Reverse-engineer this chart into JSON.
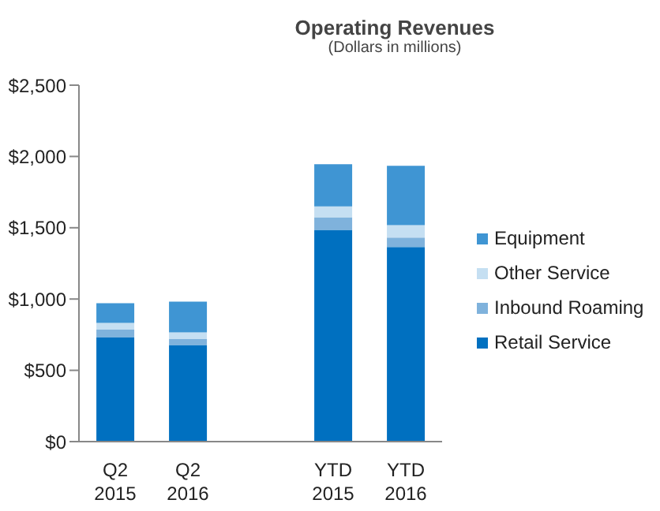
{
  "chart_data": {
    "type": "bar",
    "title": "Operating Revenues",
    "subtitle": "(Dollars in millions)",
    "stacked": true,
    "categories": [
      "Q2 2015",
      "Q2 2016",
      null,
      "YTD 2015",
      "YTD 2016"
    ],
    "series": [
      {
        "name": "Retail Service",
        "color": "#0070c0",
        "values": [
          730,
          675,
          null,
          1485,
          1365
        ]
      },
      {
        "name": "Inbound Roaming",
        "color": "#7fb2dc",
        "values": [
          55,
          44,
          null,
          88,
          66
        ]
      },
      {
        "name": "Other Service",
        "color": "#c5dff2",
        "values": [
          47,
          47,
          null,
          77,
          87
        ]
      },
      {
        "name": "Equipment",
        "color": "#3f95d3",
        "values": [
          139,
          216,
          null,
          295,
          416
        ]
      }
    ],
    "ylim": [
      0,
      2500
    ],
    "yticks": [
      {
        "value": 0,
        "label": "$0"
      },
      {
        "value": 500,
        "label": "$500"
      },
      {
        "value": 1000,
        "label": "$1,000"
      },
      {
        "value": 1500,
        "label": "$1,500"
      },
      {
        "value": 2000,
        "label": "$2,000"
      },
      {
        "value": 2500,
        "label": "$2,500"
      }
    ],
    "grid": false,
    "legend": "right"
  }
}
